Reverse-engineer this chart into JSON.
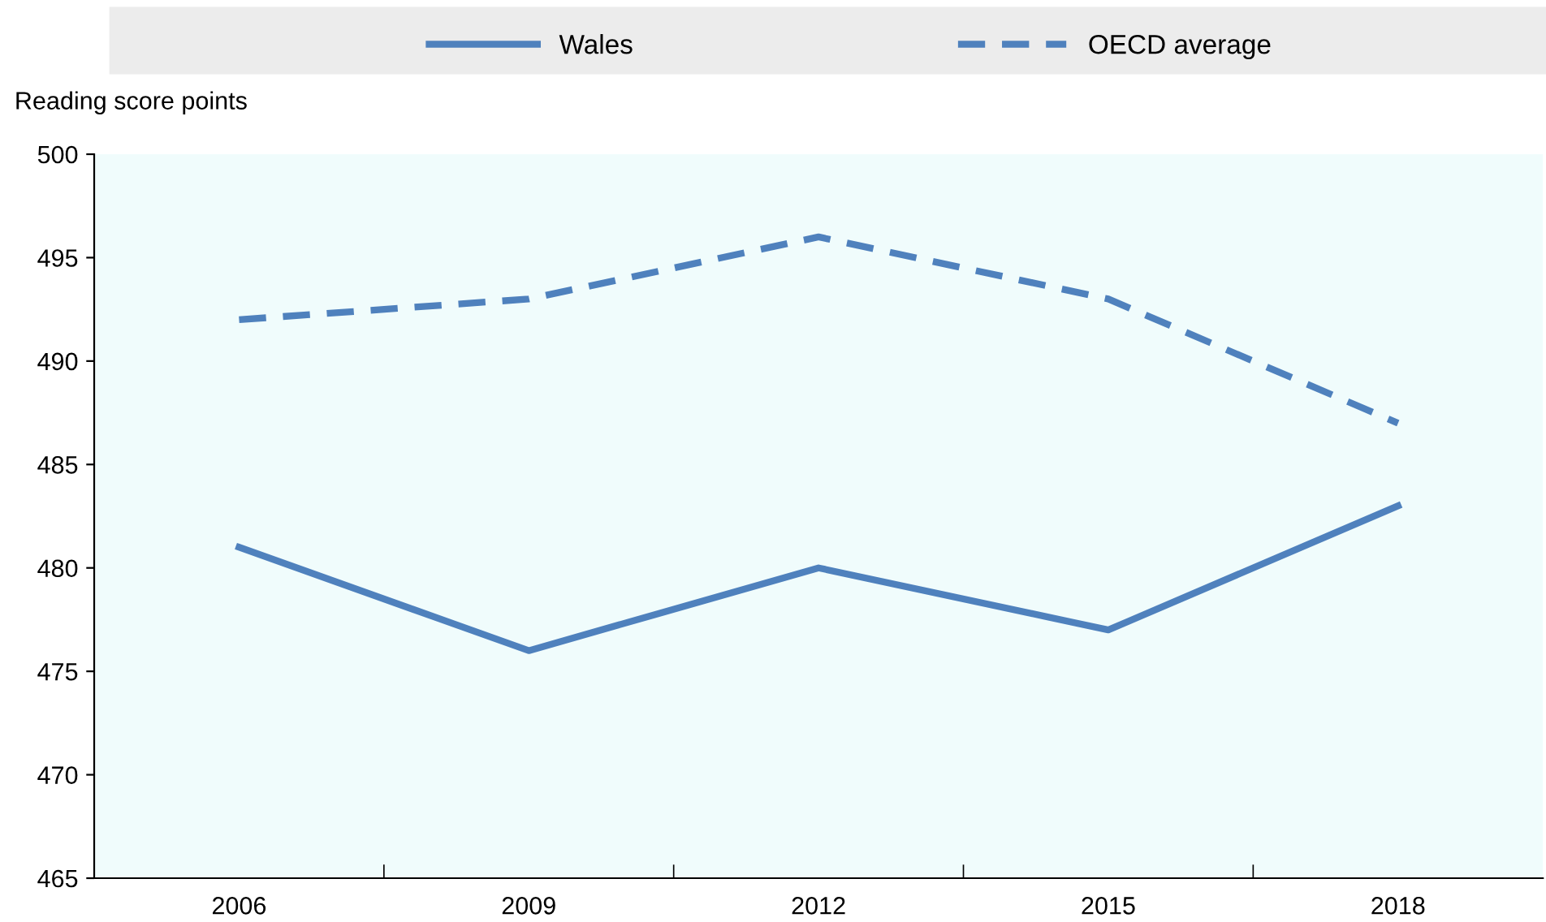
{
  "chart_data": {
    "type": "line",
    "ylabel": "Reading score points",
    "categories": [
      "2006",
      "2009",
      "2012",
      "2015",
      "2018"
    ],
    "series": [
      {
        "name": "Wales",
        "color": "#4f81bd",
        "line_style": "solid",
        "values": [
          481,
          476,
          480,
          477,
          483
        ]
      },
      {
        "name": "OECD average",
        "color": "#4f81bd",
        "line_style": "dashed",
        "values": [
          492,
          493,
          496,
          493,
          487
        ]
      }
    ],
    "ylim": [
      465,
      500
    ],
    "yticks": [
      465,
      470,
      475,
      480,
      485,
      490,
      495,
      500
    ],
    "legend": "top",
    "marker": "none",
    "grid": false
  }
}
